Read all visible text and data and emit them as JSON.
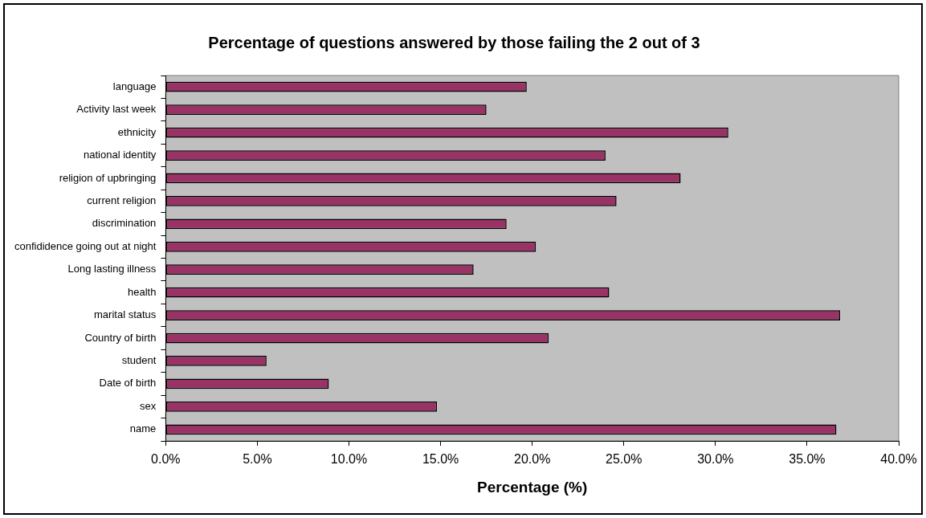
{
  "chart_data": {
    "type": "bar",
    "orientation": "horizontal",
    "title": "Percentage of questions answered by those failing the 2 out of 3",
    "xlabel": "Percentage (%)",
    "categories": [
      "language",
      "Activity last week",
      "ethnicity",
      "national identity",
      "religion of upbringing",
      "current religion",
      "discrimination",
      "confididence going out at night",
      "Long lasting illness",
      "health",
      "marital status",
      "Country of birth",
      "student",
      "Date of birth",
      "sex",
      "name"
    ],
    "values": [
      19.7,
      17.5,
      30.7,
      24.0,
      28.1,
      24.6,
      18.6,
      20.2,
      16.8,
      24.2,
      36.8,
      20.9,
      5.5,
      8.9,
      14.8,
      36.6
    ],
    "color": "#993366",
    "xlim": [
      0,
      40
    ],
    "xticks": [
      {
        "value": 0,
        "label": "0.0%"
      },
      {
        "value": 5,
        "label": "5.0%"
      },
      {
        "value": 10,
        "label": "10.0%"
      },
      {
        "value": 15,
        "label": "15.0%"
      },
      {
        "value": 20,
        "label": "20.0%"
      },
      {
        "value": 25,
        "label": "25.0%"
      },
      {
        "value": 30,
        "label": "30.0%"
      },
      {
        "value": 35,
        "label": "35.0%"
      },
      {
        "value": 40,
        "label": "40.0%"
      }
    ],
    "grid": false
  }
}
